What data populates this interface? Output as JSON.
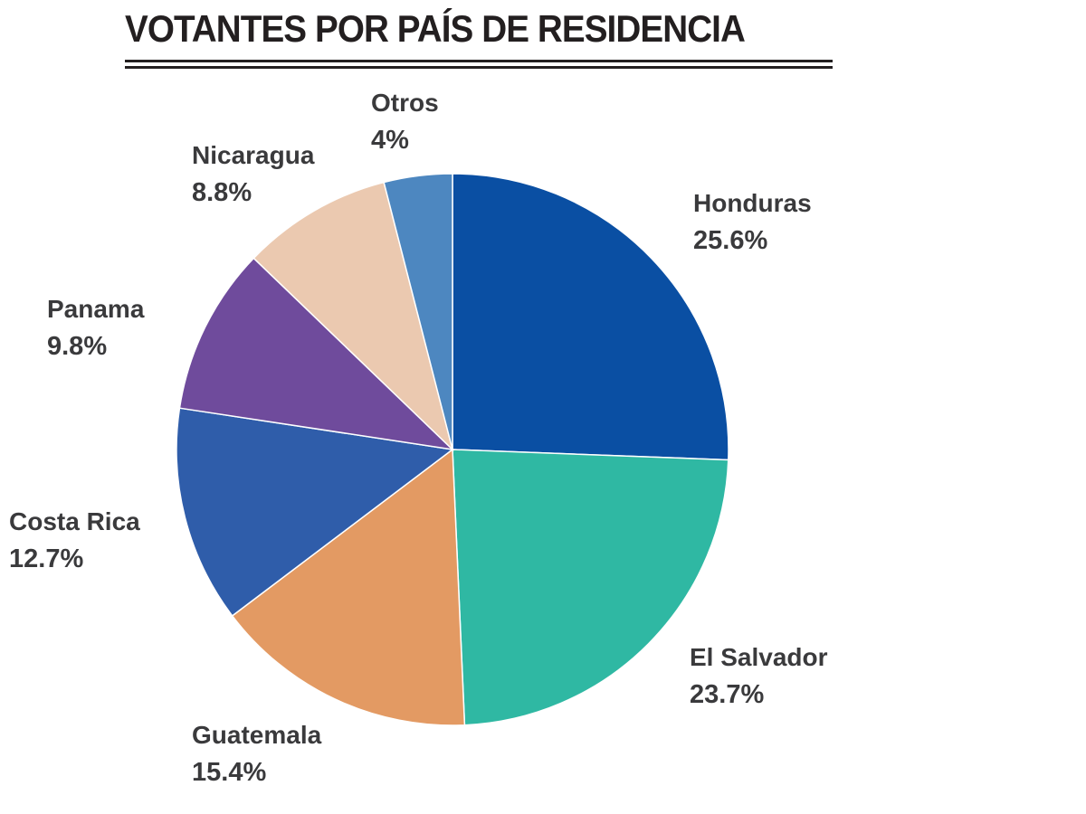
{
  "chart_data": {
    "type": "pie",
    "title": "VOTANTES POR PAÍS DE RESIDENCIA",
    "slices": [
      {
        "label": "Honduras",
        "value": 25.6,
        "value_label": "25.6%",
        "color": "#0a4fa3"
      },
      {
        "label": "El Salvador",
        "value": 23.7,
        "value_label": "23.7%",
        "color": "#2fb8a3"
      },
      {
        "label": "Guatemala",
        "value": 15.4,
        "value_label": "15.4%",
        "color": "#e39a63"
      },
      {
        "label": "Costa Rica",
        "value": 12.7,
        "value_label": "12.7%",
        "color": "#2f5daa"
      },
      {
        "label": "Panama",
        "value": 9.8,
        "value_label": "9.8%",
        "color": "#6f4b9c"
      },
      {
        "label": "Nicaragua",
        "value": 8.8,
        "value_label": "8.8%",
        "color": "#ebc9b0"
      },
      {
        "label": "Otros",
        "value": 4,
        "value_label": "4%",
        "color": "#4d87c0"
      }
    ],
    "start_angle": "12 o'clock",
    "direction": "clockwise",
    "legend": "none"
  }
}
